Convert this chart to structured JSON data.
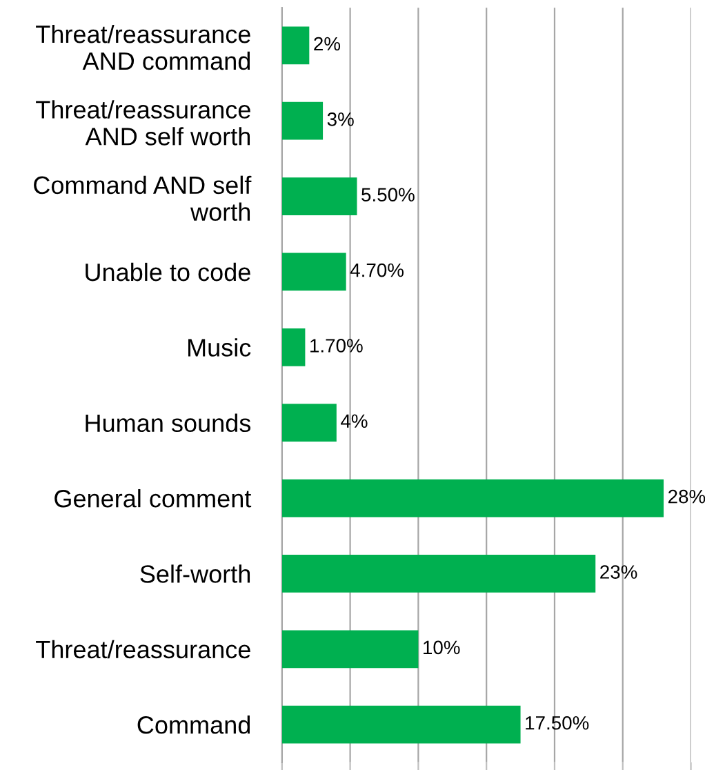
{
  "chart_data": {
    "type": "bar",
    "orientation": "horizontal",
    "categories": [
      "Threat/reassurance\nAND command",
      "Threat/reassurance\nAND self worth",
      "Command AND self\nworth",
      "Unable to code",
      "Music",
      "Human sounds",
      "General comment",
      "Self-worth",
      "Threat/reassurance",
      "Command"
    ],
    "values": [
      2,
      3,
      5.5,
      4.7,
      1.7,
      4,
      28,
      23,
      10,
      17.5
    ],
    "value_labels": [
      "2%",
      "3%",
      "5.50%",
      "4.70%",
      "1.70%",
      "4%",
      "28%",
      "23%",
      "10%",
      "17.50%"
    ],
    "color": "#00b050",
    "xlim": [
      0,
      30
    ],
    "xticks": [
      {
        "value": 0,
        "label": null
      },
      {
        "value": 5,
        "label": null
      },
      {
        "value": 10,
        "label": null
      },
      {
        "value": 15,
        "label": null
      },
      {
        "value": 20,
        "label": null
      },
      {
        "value": 25,
        "label": null
      },
      {
        "value": 30,
        "label": null
      }
    ],
    "grid": "x"
  }
}
